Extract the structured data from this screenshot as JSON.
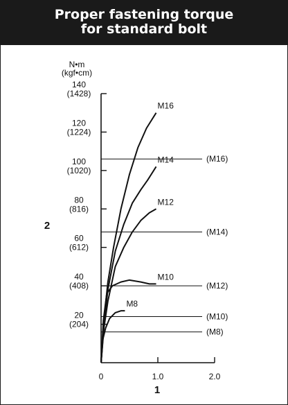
{
  "header": {
    "title_line1": "Proper fastening torque",
    "title_line2": "for standard bolt"
  },
  "chart_data": {
    "type": "line",
    "ylabel_line1": "N•m",
    "ylabel_line2": "(kgf•cm)",
    "y_axis_marker": "2",
    "x_axis_marker": "1",
    "xlim": [
      0,
      2.0
    ],
    "ylim": [
      0,
      140
    ],
    "y_ticks": [
      {
        "value": 20,
        "label": "20",
        "sub": "(204)"
      },
      {
        "value": 40,
        "label": "40",
        "sub": "(408)"
      },
      {
        "value": 60,
        "label": "60",
        "sub": "(612)"
      },
      {
        "value": 80,
        "label": "80",
        "sub": "(816)"
      },
      {
        "value": 100,
        "label": "100",
        "sub": "(1020)"
      },
      {
        "value": 120,
        "label": "120",
        "sub": "(1224)"
      },
      {
        "value": 140,
        "label": "140",
        "sub": "(1428)"
      }
    ],
    "x_ticks": [
      {
        "value": 0,
        "label": "0"
      },
      {
        "value": 1.0,
        "label": "1.0"
      },
      {
        "value": 2.0,
        "label": "2.0"
      }
    ],
    "series": [
      {
        "name": "M16",
        "points": [
          [
            0,
            0
          ],
          [
            0.05,
            22
          ],
          [
            0.12,
            42
          ],
          [
            0.22,
            60
          ],
          [
            0.35,
            80
          ],
          [
            0.5,
            98
          ],
          [
            0.65,
            112
          ],
          [
            0.8,
            122
          ],
          [
            0.97,
            130
          ]
        ]
      },
      {
        "name": "M14",
        "points": [
          [
            0,
            0
          ],
          [
            0.05,
            20
          ],
          [
            0.12,
            38
          ],
          [
            0.25,
            58
          ],
          [
            0.4,
            72
          ],
          [
            0.55,
            83
          ],
          [
            0.7,
            90
          ],
          [
            0.82,
            95
          ],
          [
            0.97,
            102
          ]
        ]
      },
      {
        "name": "M12",
        "points": [
          [
            0,
            0
          ],
          [
            0.05,
            18
          ],
          [
            0.12,
            32
          ],
          [
            0.25,
            50
          ],
          [
            0.4,
            60
          ],
          [
            0.55,
            68
          ],
          [
            0.7,
            74
          ],
          [
            0.85,
            78
          ],
          [
            0.97,
            80
          ]
        ]
      },
      {
        "name": "M10",
        "points": [
          [
            0,
            0
          ],
          [
            0.04,
            22
          ],
          [
            0.1,
            36
          ],
          [
            0.2,
            40
          ],
          [
            0.35,
            42
          ],
          [
            0.5,
            43
          ],
          [
            0.7,
            42
          ],
          [
            0.85,
            41
          ],
          [
            0.97,
            41
          ]
        ]
      },
      {
        "name": "M8",
        "points": [
          [
            0,
            0
          ],
          [
            0.03,
            12
          ],
          [
            0.08,
            18
          ],
          [
            0.15,
            23
          ],
          [
            0.25,
            26
          ],
          [
            0.35,
            27
          ],
          [
            0.42,
            27
          ]
        ]
      }
    ],
    "thresholds": [
      {
        "label": "(M16)",
        "value": 106
      },
      {
        "label": "(M14)",
        "value": 68
      },
      {
        "label": "(M12)",
        "value": 40
      },
      {
        "label": "(M10)",
        "value": 24
      },
      {
        "label": "(M8)",
        "value": 16
      }
    ]
  }
}
